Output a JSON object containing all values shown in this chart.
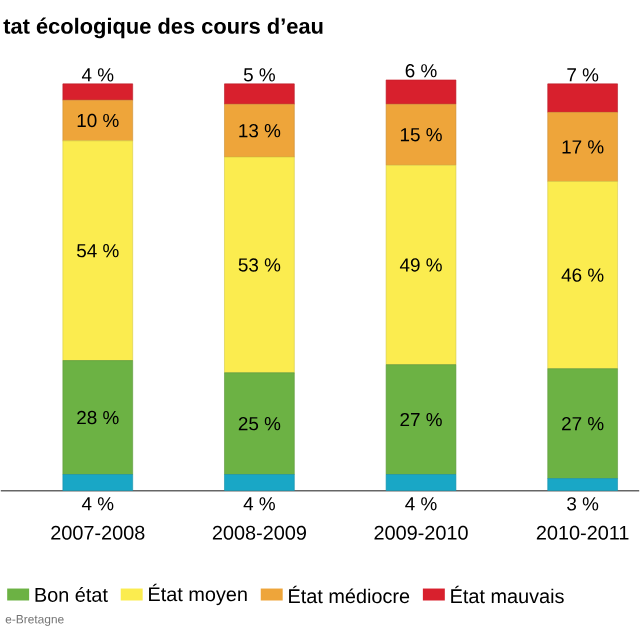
{
  "chart_data": {
    "type": "bar",
    "stacked": true,
    "title": "tat écologique des cours d’eau",
    "categories": [
      "2007-2008",
      "2008-2009",
      "2009-2010",
      "2010-2011"
    ],
    "series": [
      {
        "color": "#19a7c6",
        "values": [
          4,
          4,
          4,
          3
        ],
        "value_labels": [
          "4 %",
          "4 %",
          "4 %",
          "3 %"
        ]
      },
      {
        "name": "Bon état",
        "color": "#6cb244",
        "values": [
          28,
          25,
          27,
          27
        ],
        "value_labels": [
          "28 %",
          "25 %",
          "27 %",
          "27 %"
        ]
      },
      {
        "name": "État moyen",
        "color": "#fbec4f",
        "values": [
          54,
          53,
          49,
          46
        ],
        "value_labels": [
          "54 %",
          "53 %",
          "49 %",
          "46 %"
        ]
      },
      {
        "name": "État médiocre",
        "color": "#eea53a",
        "values": [
          10,
          13,
          15,
          17
        ],
        "value_labels": [
          "10 %",
          "13 %",
          "15 %",
          "17 %"
        ]
      },
      {
        "name": "État mauvais",
        "color": "#d8202d",
        "values": [
          4,
          5,
          6,
          7
        ],
        "value_labels": [
          "4 %",
          "5 %",
          "6 %",
          "7 %"
        ]
      }
    ],
    "legend": "bottom",
    "annotations": [
      "e-Bretagne"
    ]
  }
}
